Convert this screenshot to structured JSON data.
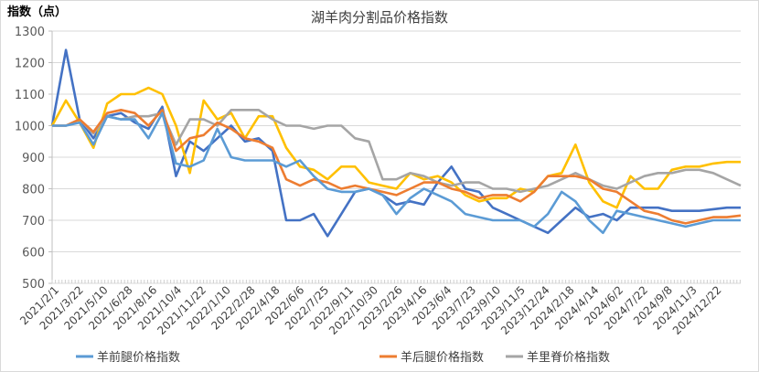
{
  "chart_data": {
    "type": "line",
    "title": "湖羊肉分割品价格指数",
    "ylabel": "指数（点）",
    "xlabel": "",
    "ylim": [
      500,
      1300
    ],
    "yticks": [
      500,
      600,
      700,
      800,
      900,
      1000,
      1100,
      1200,
      1300
    ],
    "grid": true,
    "legend_position": "bottom",
    "x_tick_labels": [
      "2021/2/1",
      "2021/3/22",
      "2021/5/10",
      "2021/6/28",
      "2021/8/16",
      "2021/10/4",
      "2021/11/22",
      "2022/1/10",
      "2022/2/28",
      "2022/4/18",
      "2022/6/6",
      "2022/7/25",
      "2022/9/11",
      "2022/10/30",
      "2023/2/26",
      "2023/4/16",
      "2023/6/4",
      "2023/7/23",
      "2023/9/10",
      "2023/11/5",
      "2023/12/24",
      "2024/2/18",
      "2024/4/14",
      "2024/6/2",
      "2024/7/22",
      "2024/9/8",
      "2024/11/3",
      "2024/12/22"
    ],
    "series": [
      {
        "name": "",
        "color": "#4472C4",
        "legend": false,
        "values": [
          1000,
          1240,
          1020,
          960,
          1030,
          1040,
          1010,
          990,
          1060,
          840,
          950,
          920,
          960,
          1000,
          950,
          960,
          920,
          700,
          700,
          720,
          650,
          720,
          790,
          800,
          780,
          750,
          760,
          750,
          820,
          870,
          800,
          790,
          740,
          720,
          700,
          680,
          660,
          700,
          740,
          710,
          720,
          700,
          740,
          740,
          740,
          730,
          730,
          730,
          735,
          740,
          740
        ]
      },
      {
        "name": "",
        "color": "#FFC000",
        "legend": false,
        "values": [
          1000,
          1080,
          1010,
          930,
          1070,
          1100,
          1100,
          1120,
          1100,
          1000,
          850,
          1080,
          1020,
          1040,
          960,
          1030,
          1030,
          930,
          870,
          860,
          830,
          870,
          870,
          820,
          810,
          800,
          850,
          830,
          840,
          820,
          780,
          760,
          770,
          770,
          800,
          790,
          840,
          850,
          940,
          820,
          760,
          740,
          840,
          800,
          800,
          860,
          870,
          870,
          880,
          885,
          885
        ]
      },
      {
        "name": "羊里脊价格指数",
        "color": "#A5A5A5",
        "legend": true,
        "values": [
          1000,
          1000,
          1020,
          975,
          1030,
          1020,
          1030,
          1030,
          1040,
          940,
          1020,
          1020,
          1000,
          1050,
          1050,
          1050,
          1020,
          1000,
          1000,
          990,
          1000,
          1000,
          960,
          950,
          830,
          830,
          850,
          840,
          820,
          810,
          820,
          820,
          800,
          800,
          790,
          800,
          810,
          830,
          850,
          830,
          810,
          800,
          820,
          840,
          850,
          850,
          860,
          860,
          850,
          830,
          810
        ]
      },
      {
        "name": "羊后腿价格指数",
        "color": "#ED7D31",
        "legend": true,
        "values": [
          1000,
          1000,
          1020,
          980,
          1040,
          1050,
          1040,
          1000,
          1050,
          920,
          960,
          970,
          1010,
          990,
          960,
          950,
          930,
          830,
          810,
          830,
          820,
          800,
          810,
          800,
          790,
          780,
          800,
          820,
          820,
          800,
          790,
          770,
          780,
          780,
          760,
          790,
          840,
          840,
          840,
          830,
          800,
          790,
          760,
          730,
          720,
          700,
          690,
          700,
          710,
          710,
          715
        ]
      },
      {
        "name": "羊前腿价格指数",
        "color": "#5B9BD5",
        "legend": true,
        "values": [
          1000,
          1000,
          1010,
          940,
          1030,
          1020,
          1020,
          960,
          1040,
          880,
          870,
          890,
          990,
          900,
          890,
          890,
          890,
          870,
          890,
          840,
          800,
          790,
          790,
          800,
          780,
          720,
          770,
          800,
          780,
          760,
          720,
          710,
          700,
          700,
          700,
          680,
          720,
          790,
          760,
          700,
          660,
          730,
          720,
          710,
          700,
          690,
          680,
          690,
          700,
          700,
          700
        ]
      }
    ]
  }
}
